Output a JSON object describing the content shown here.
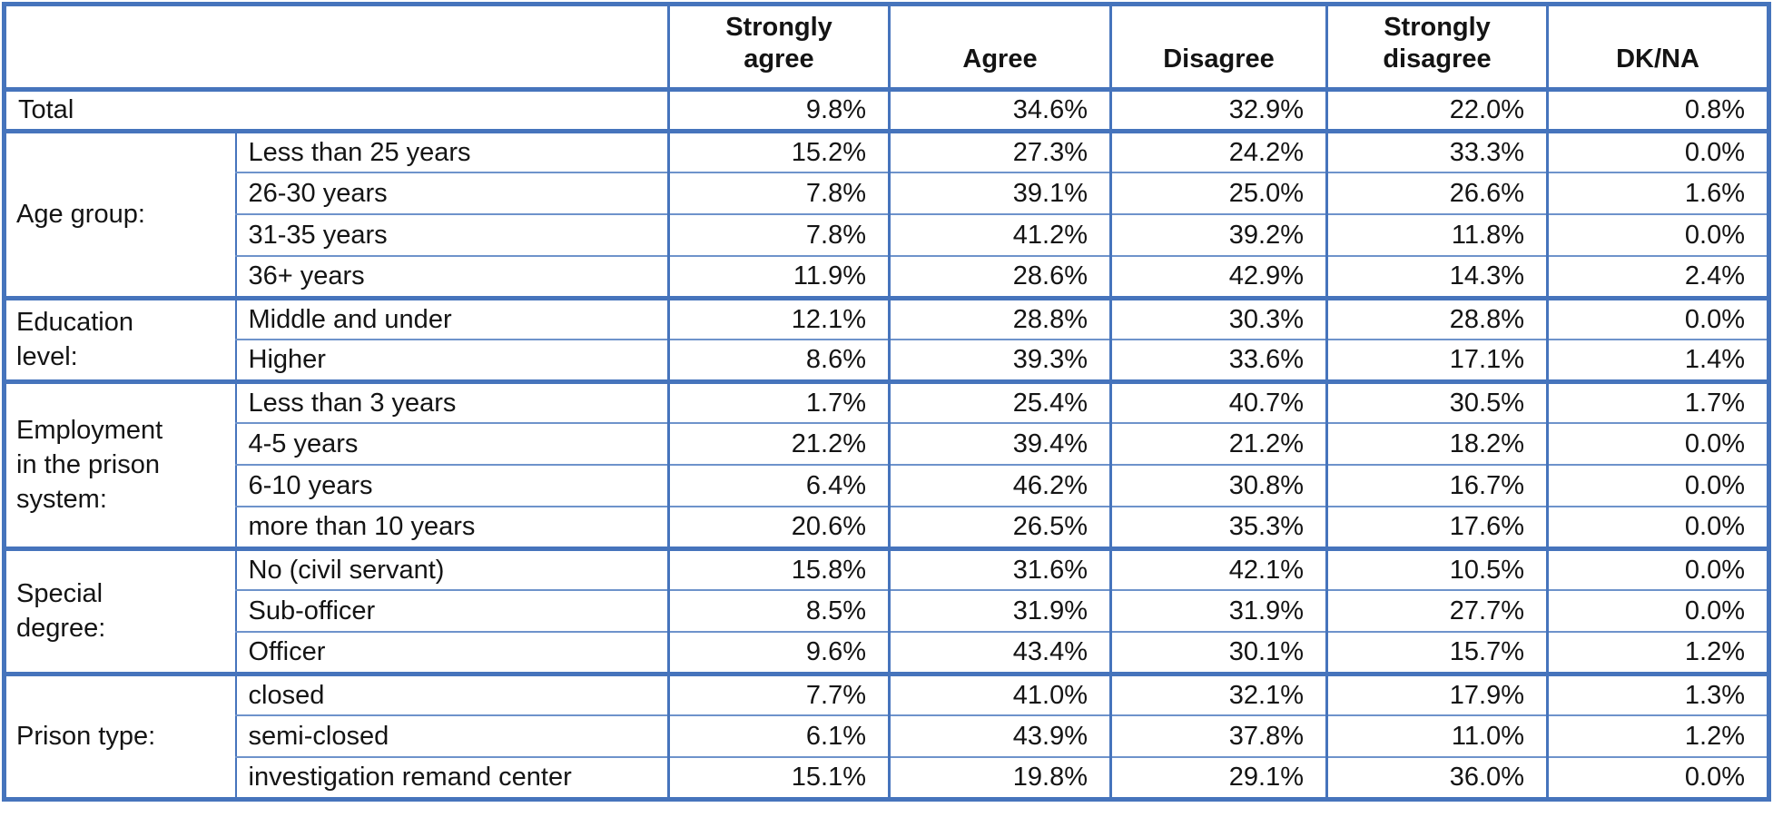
{
  "chart_data": {
    "type": "table",
    "columns": [
      "Strongly agree",
      "Agree",
      "Disagree",
      "Strongly disagree",
      "DK/NA"
    ],
    "columns_display": [
      "Strongly\nagree",
      "Agree",
      "Disagree",
      "Strongly\ndisagree",
      "DK/NA"
    ],
    "total_row": {
      "label": "Total",
      "values": [
        "9.8%",
        "34.6%",
        "32.9%",
        "22.0%",
        "0.8%"
      ]
    },
    "groups": [
      {
        "label": "Age group:",
        "label_display": "Age group:",
        "rows": [
          {
            "label": "Less than 25 years",
            "values": [
              "15.2%",
              "27.3%",
              "24.2%",
              "33.3%",
              "0.0%"
            ]
          },
          {
            "label": "26-30 years",
            "values": [
              "7.8%",
              "39.1%",
              "25.0%",
              "26.6%",
              "1.6%"
            ]
          },
          {
            "label": "31-35 years",
            "values": [
              "7.8%",
              "41.2%",
              "39.2%",
              "11.8%",
              "0.0%"
            ]
          },
          {
            "label": "36+ years",
            "values": [
              "11.9%",
              "28.6%",
              "42.9%",
              "14.3%",
              "2.4%"
            ]
          }
        ]
      },
      {
        "label": "Education level:",
        "label_display": "Education\nlevel:",
        "rows": [
          {
            "label": "Middle and under",
            "values": [
              "12.1%",
              "28.8%",
              "30.3%",
              "28.8%",
              "0.0%"
            ]
          },
          {
            "label": "Higher",
            "values": [
              "8.6%",
              "39.3%",
              "33.6%",
              "17.1%",
              "1.4%"
            ]
          }
        ]
      },
      {
        "label": "Employment in the prison system:",
        "label_display": "Employment\nin the prison\nsystem:",
        "rows": [
          {
            "label": "Less than 3 years",
            "values": [
              "1.7%",
              "25.4%",
              "40.7%",
              "30.5%",
              "1.7%"
            ]
          },
          {
            "label": "4-5 years",
            "values": [
              "21.2%",
              "39.4%",
              "21.2%",
              "18.2%",
              "0.0%"
            ]
          },
          {
            "label": "6-10 years",
            "values": [
              "6.4%",
              "46.2%",
              "30.8%",
              "16.7%",
              "0.0%"
            ]
          },
          {
            "label": "more than 10 years",
            "values": [
              "20.6%",
              "26.5%",
              "35.3%",
              "17.6%",
              "0.0%"
            ]
          }
        ]
      },
      {
        "label": "Special degree:",
        "label_display": "Special\ndegree:",
        "rows": [
          {
            "label": "No (civil servant)",
            "values": [
              "15.8%",
              "31.6%",
              "42.1%",
              "10.5%",
              "0.0%"
            ]
          },
          {
            "label": "Sub-officer",
            "values": [
              "8.5%",
              "31.9%",
              "31.9%",
              "27.7%",
              "0.0%"
            ]
          },
          {
            "label": "Officer",
            "values": [
              "9.6%",
              "43.4%",
              "30.1%",
              "15.7%",
              "1.2%"
            ]
          }
        ]
      },
      {
        "label": "Prison type:",
        "label_display": "Prison type:",
        "rows": [
          {
            "label": "closed",
            "values": [
              "7.7%",
              "41.0%",
              "32.1%",
              "17.9%",
              "1.3%"
            ]
          },
          {
            "label": "semi-closed",
            "values": [
              "6.1%",
              "43.9%",
              "37.8%",
              "11.0%",
              "1.2%"
            ]
          },
          {
            "label": "investigation remand center",
            "values": [
              "15.1%",
              "19.8%",
              "29.1%",
              "36.0%",
              "0.0%"
            ]
          }
        ]
      }
    ],
    "colors": {
      "border_accent": "#4674BC",
      "border_thin": "#6E93CB",
      "text": "#141414",
      "background": "#FFFFFF"
    },
    "layout_hints": {
      "grid": "on",
      "value_alignment": "right",
      "header_bold": true
    }
  }
}
